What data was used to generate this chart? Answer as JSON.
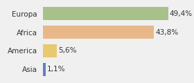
{
  "categories": [
    "Europa",
    "Africa",
    "America",
    "Asia"
  ],
  "values": [
    49.4,
    43.8,
    5.6,
    1.1
  ],
  "labels": [
    "49,4%",
    "43,8%",
    "5,6%",
    "1,1%"
  ],
  "bar_colors": [
    "#a8c08a",
    "#e8b88a",
    "#e8c870",
    "#6080c0"
  ],
  "background_color": "#f0f0f0",
  "xlim": [
    0,
    58
  ],
  "bar_height": 0.72,
  "label_fontsize": 7.5,
  "tick_fontsize": 7.5
}
